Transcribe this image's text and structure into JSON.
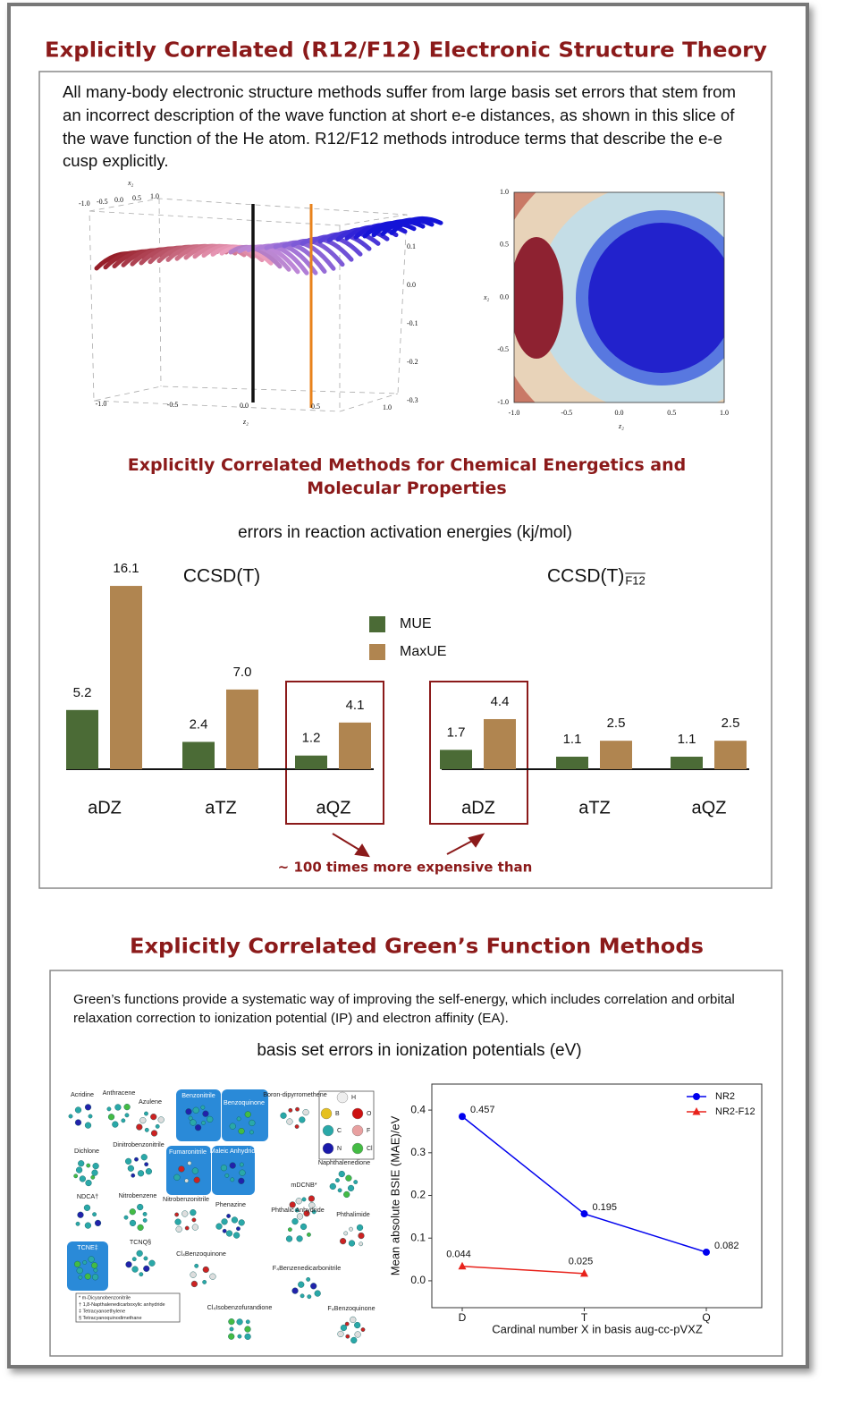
{
  "title": "Explicitly Correlated (R12/F12) Electronic Structure Theory",
  "intro": "All many-body electronic structure methods suffer from large basis set errors that stem from an incorrect description of the wave function at short e-e distances, as shown in this slice of the wave function of the He atom. R12/F12 methods introduce terms that describe the e-e cusp explicitly.",
  "figures": {
    "surface": {
      "x_label": "x₂",
      "z_label": "z₂",
      "top_ticks": [
        "-1.0",
        "-0.5",
        "0.0",
        "0.5",
        "1.0"
      ],
      "side_ticks": [
        "0.1",
        "0.0",
        "-0.1",
        "-0.2",
        "-0.3"
      ],
      "bottom_ticks": [
        "-1.0",
        "-0.5",
        "0.0",
        "0.5",
        "1.0"
      ]
    },
    "contour": {
      "x_label": "z₂",
      "y_label": "x₂",
      "yticks": [
        "1.0",
        "0.5",
        "0.0",
        "-0.5",
        "-1.0"
      ],
      "xticks": [
        "-1.0",
        "-0.5",
        "0.0",
        "0.5",
        "1.0"
      ]
    }
  },
  "subtitle": "Explicitly Correlated Methods for Chemical Energetics and Molecular Properties",
  "section2": {
    "title": "Explicitly Correlated Green’s Function Methods",
    "text": "Green’s functions provide a systematic way of improving the self-energy, which includes correlation and orbital relaxation correction to ionization potential (IP) and electron affinity (EA).",
    "molecules": [
      "Acridine",
      "Anthracene",
      "Azulene",
      "Benzonitrile",
      "Benzoquinone",
      "Boron-dipyrromethene",
      "Dinitrobenzonitrile",
      "Dichlone",
      "Fumaronitrile",
      "Maleic Anhydride",
      "Naphthalenedione",
      "mDCNB*",
      "NDCA†",
      "Nitrobenzene",
      "Nitrobenzonitrile",
      "Phenazine",
      "Phthalic Anhydride",
      "Phthalimide",
      "TCNQ§",
      "TCNE‡",
      "Cl₄Benzoquinone",
      "F₄Benzenedicarbonitrile",
      "Cl₄Isobenzofurandione",
      "F₄Benzoquinone"
    ],
    "elements": [
      "H",
      "B",
      "O",
      "C",
      "F",
      "N",
      "Cl"
    ],
    "footnotes": [
      "* m-Dicyanobenzonitrile",
      "† 1,8-Napthalenedicarboxylic anhydride",
      "‡ Tetracyanoethylene",
      "§ Tetracyanoquinodimethane"
    ]
  },
  "chart_data": [
    {
      "type": "bar",
      "title": "errors in reaction activation energies (kj/mol)",
      "groups": [
        {
          "name": "CCSD(T)"
        },
        {
          "name": "CCSD(T)",
          "subscript": "F12"
        }
      ],
      "categories": [
        "aDZ",
        "aTZ",
        "aQZ",
        "aDZ",
        "aTZ",
        "aQZ"
      ],
      "series": [
        {
          "name": "MUE",
          "color": "#4b6b36",
          "values": [
            5.2,
            2.4,
            1.2,
            1.7,
            1.1,
            1.1
          ],
          "value_labels": [
            "5.2",
            "2.4",
            "1.2",
            "1.7",
            "1.1",
            "1.1"
          ]
        },
        {
          "name": "MaxUE",
          "color": "#b08550",
          "values": [
            16.1,
            7.0,
            4.1,
            4.4,
            2.5,
            2.5
          ],
          "value_labels": [
            "16.1",
            "7.0",
            "4.1",
            "4.4",
            "2.5",
            "2.5"
          ]
        }
      ],
      "annotation": "~ 100 times more expensive than"
    },
    {
      "type": "line",
      "title": "basis set errors in ionization potentials (eV)",
      "categories": [
        "D",
        "T",
        "Q"
      ],
      "x_label": "Cardinal number X in basis aug-cc-pVXZ",
      "y_label": "Mean absolute BSIE (MAE)/eV",
      "ylim": [
        -0.063,
        0.461
      ],
      "yticks": [
        {
          "value": 0,
          "label": "0.0"
        },
        0.1,
        0.2,
        0.3,
        0.4
      ],
      "legend": "upper right",
      "series": [
        {
          "name": "NR2",
          "color": "#0000ee",
          "marker": "circle",
          "values": [
            0.385,
            0.157,
            0.067
          ],
          "annotations": [
            "0.457",
            "0.195",
            "0.082"
          ]
        },
        {
          "name": "NR2-F12",
          "color": "#e8221b",
          "marker": "triangle",
          "values": [
            0.034,
            0.017,
            null
          ],
          "annotations": [
            "0.044",
            "0.025"
          ]
        }
      ]
    }
  ]
}
